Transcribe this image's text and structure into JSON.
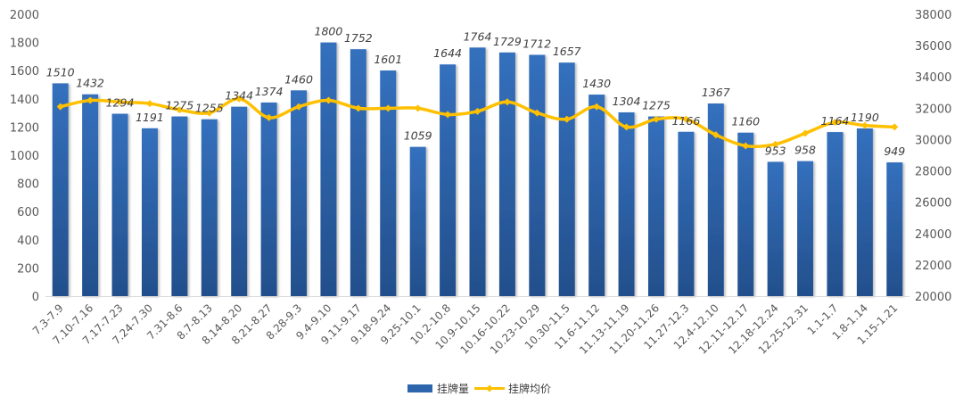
{
  "chart_data": {
    "type": "bar",
    "title": "",
    "categories": [
      "7.3-7.9",
      "7.10-7.16",
      "7.17-7.23",
      "7.24-7.30",
      "7.31-8.6",
      "8.7-8.13",
      "8.14-8.20",
      "8.21-8.27",
      "8.28-9.3",
      "9.4-9.10",
      "9.11-9.17",
      "9.18-9.24",
      "9.25-10.1",
      "10.2-10.8",
      "10.9-10.15",
      "10.16-10.22",
      "10.23-10.29",
      "10.30-11.5",
      "11.6-11.12",
      "11.13-11.19",
      "11.20-11.26",
      "11.27-12.3",
      "12.4-12.10",
      "12.11-12.17",
      "12.18-12.24",
      "12.25-12.31",
      "1.1-1.7",
      "1.8-1.14",
      "1.15-1.21"
    ],
    "series": [
      {
        "name": "挂牌量",
        "type": "bar",
        "axis": "left",
        "color": "#2e66ae",
        "values": [
          1510,
          1432,
          1294,
          1191,
          1275,
          1255,
          1344,
          1374,
          1460,
          1800,
          1752,
          1601,
          1059,
          1644,
          1764,
          1729,
          1712,
          1657,
          1430,
          1304,
          1275,
          1166,
          1367,
          1160,
          953,
          958,
          1164,
          1190,
          949
        ]
      },
      {
        "name": "挂牌均价",
        "type": "line",
        "axis": "right",
        "color": "#ffc000",
        "values": [
          32100,
          32500,
          32400,
          32300,
          31900,
          31700,
          32600,
          31400,
          32100,
          32500,
          32000,
          32000,
          32000,
          31600,
          31800,
          32400,
          31700,
          31300,
          32100,
          30800,
          31300,
          31300,
          30300,
          29600,
          29700,
          30400,
          31100,
          30900,
          30800
        ]
      }
    ],
    "ylim": [
      0,
      2000
    ],
    "yticks": [
      "0",
      "200",
      "400",
      "600",
      "800",
      "1000",
      "1200",
      "1400",
      "1600",
      "1800",
      "2000"
    ],
    "y2lim": [
      20000,
      38000
    ],
    "y2ticks": [
      "20000",
      "22000",
      "24000",
      "26000",
      "28000",
      "30000",
      "32000",
      "34000",
      "36000",
      "38000"
    ],
    "xlabel": "",
    "ylabel": "",
    "grid": false,
    "legend": "bottom-center"
  }
}
